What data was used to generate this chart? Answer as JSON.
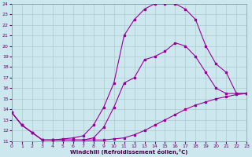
{
  "xlabel": "Windchill (Refroidissement éolien,°C)",
  "background_color": "#cce8ee",
  "grid_color": "#aacccc",
  "line_color": "#990099",
  "xmin": 0,
  "xmax": 23,
  "ymin": 11,
  "ymax": 24,
  "line1_x": [
    0,
    1,
    2,
    3,
    4,
    5,
    6,
    7,
    8,
    9,
    10,
    11,
    12,
    13,
    14,
    15,
    16,
    17,
    18,
    19,
    20,
    21,
    22,
    23
  ],
  "line1_y": [
    13.7,
    12.5,
    11.8,
    11.1,
    11.1,
    11.1,
    11.1,
    11.1,
    11.1,
    11.1,
    11.2,
    11.3,
    11.6,
    12.0,
    12.5,
    13.0,
    13.5,
    14.0,
    14.4,
    14.7,
    15.0,
    15.2,
    15.4,
    15.5
  ],
  "line2_x": [
    0,
    1,
    2,
    3,
    4,
    5,
    6,
    7,
    8,
    9,
    10,
    11,
    12,
    13,
    14,
    15,
    16,
    17,
    18,
    19,
    20,
    21,
    22,
    23
  ],
  "line2_y": [
    13.7,
    12.5,
    11.8,
    11.1,
    11.1,
    11.1,
    11.1,
    11.1,
    11.3,
    12.3,
    14.2,
    16.5,
    17.0,
    18.7,
    19.0,
    19.5,
    20.3,
    20.0,
    19.0,
    17.5,
    16.0,
    15.5,
    15.5,
    15.5
  ],
  "line3_x": [
    0,
    1,
    2,
    3,
    4,
    5,
    6,
    7,
    8,
    9,
    10,
    11,
    12,
    13,
    14,
    15,
    16,
    17,
    18,
    19,
    20,
    21,
    22,
    23
  ],
  "line3_y": [
    13.7,
    12.5,
    11.8,
    11.1,
    11.1,
    11.2,
    11.3,
    11.5,
    12.5,
    14.2,
    16.5,
    21.0,
    22.5,
    23.5,
    24.0,
    24.0,
    24.0,
    23.5,
    22.5,
    20.0,
    18.3,
    17.5,
    15.5,
    15.5
  ]
}
